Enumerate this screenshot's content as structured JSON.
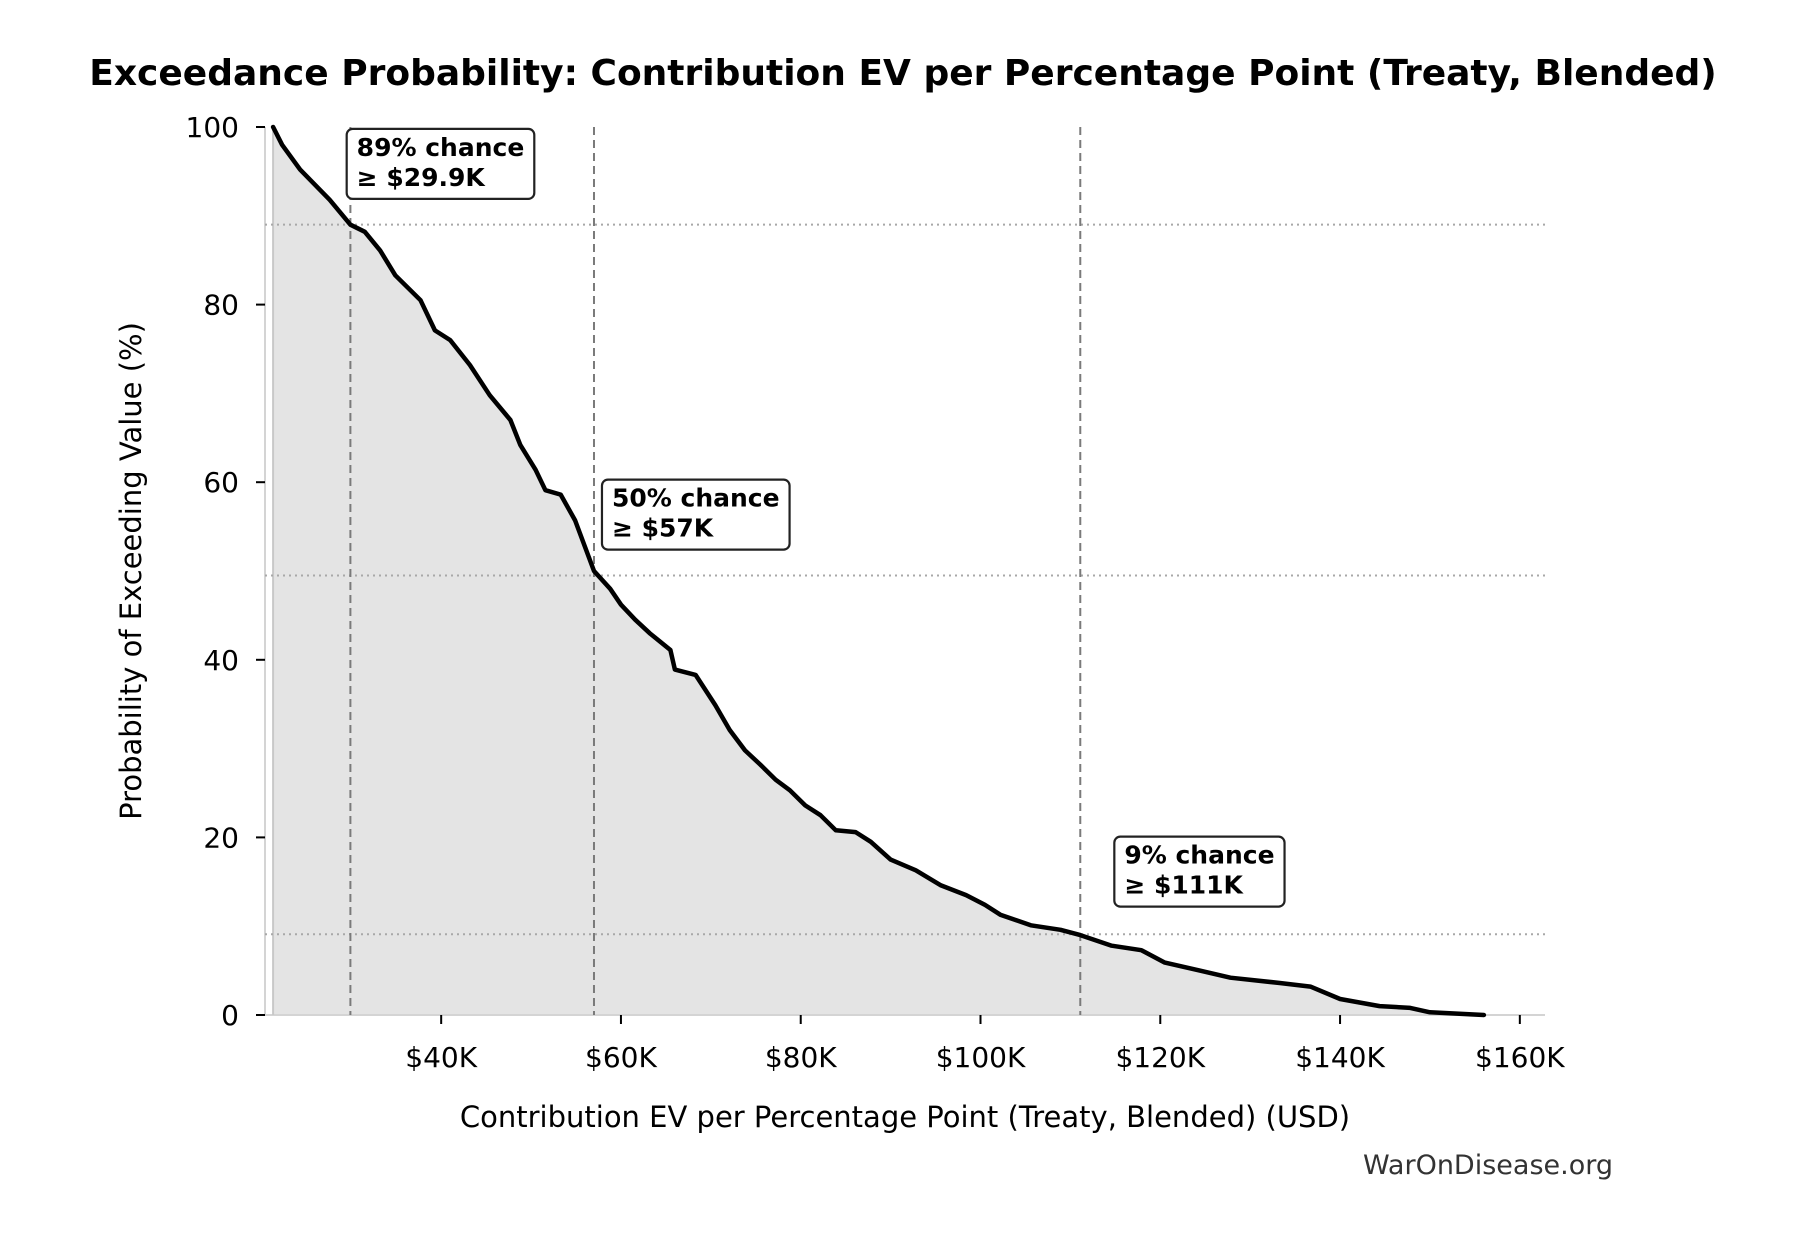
{
  "chart_data": {
    "type": "area",
    "title": "Exceedance Probability: Contribution EV per Percentage Point (Treaty, Blended)",
    "xlabel": "Contribution EV per Percentage Point (Treaty, Blended) (USD)",
    "ylabel": "Probability of Exceeding Value (%)",
    "xlim": [
      20.4,
      162.8
    ],
    "ylim": [
      0,
      100
    ],
    "x_unit": "thousand USD",
    "x_ticks": [
      {
        "value": 40,
        "label": "$40K"
      },
      {
        "value": 60,
        "label": "$60K"
      },
      {
        "value": 80,
        "label": "$80K"
      },
      {
        "value": 100,
        "label": "$100K"
      },
      {
        "value": 120,
        "label": "$120K"
      },
      {
        "value": 140,
        "label": "$140K"
      },
      {
        "value": 160,
        "label": "$160K"
      }
    ],
    "y_ticks": [
      {
        "value": 0,
        "label": "0"
      },
      {
        "value": 20,
        "label": "20"
      },
      {
        "value": 40,
        "label": "40"
      },
      {
        "value": 60,
        "label": "60"
      },
      {
        "value": 80,
        "label": "80"
      },
      {
        "value": 100,
        "label": "100"
      }
    ],
    "grid": false,
    "legend": "none",
    "series": [
      {
        "name": "Exceedance probability",
        "color": "#000000",
        "fill": "#e4e4e4",
        "x": [
          21.3,
          22.3,
          24.3,
          27.6,
          29.9,
          31.5,
          33.2,
          34.9,
          37.7,
          39.3,
          41.0,
          43.2,
          45.4,
          47.7,
          48.8,
          50.5,
          51.6,
          53.3,
          54.9,
          57.0,
          58.8,
          60.0,
          61.6,
          63.2,
          65.5,
          66.0,
          68.3,
          70.5,
          72.1,
          73.8,
          75.5,
          77.2,
          78.8,
          80.5,
          82.2,
          83.9,
          86.1,
          87.8,
          90.0,
          92.8,
          95.6,
          98.4,
          100.5,
          102.2,
          105.6,
          108.9,
          111.1,
          114.6,
          117.9,
          120.5,
          124.4,
          127.8,
          133.3,
          136.7,
          140.0,
          144.4,
          147.8,
          150.0,
          156.0
        ],
        "y": [
          100,
          98,
          95.2,
          91.8,
          89.0,
          88.2,
          86.1,
          83.3,
          80.5,
          77.1,
          76.0,
          73.2,
          69.8,
          67.0,
          64.2,
          61.4,
          59.1,
          58.6,
          55.7,
          50.0,
          48.0,
          46.2,
          44.5,
          43.0,
          41.1,
          38.9,
          38.3,
          34.9,
          32.1,
          29.8,
          28.2,
          26.5,
          25.3,
          23.6,
          22.5,
          20.8,
          20.6,
          19.5,
          17.5,
          16.3,
          14.6,
          13.5,
          12.4,
          11.3,
          10.1,
          9.6,
          9.0,
          7.8,
          7.3,
          5.9,
          5.0,
          4.2,
          3.6,
          3.2,
          1.8,
          1.0,
          0.8,
          0.3,
          0.0
        ]
      }
    ],
    "reference_lines": [
      {
        "x": 29.9,
        "y": 89
      },
      {
        "x": 57.0,
        "y": 49.5
      },
      {
        "x": 111.1,
        "y": 9.1
      }
    ],
    "annotations": [
      {
        "line1": "89% chance",
        "line2": "≥ $29.9K",
        "anchor_x": 30.6,
        "anchor_y": 99
      },
      {
        "line1": "50% chance",
        "line2": "≥ $57K",
        "anchor_x": 59.0,
        "anchor_y": 59.5
      },
      {
        "line1": "9% chance",
        "line2": "≥ $111K",
        "anchor_x": 116.0,
        "anchor_y": 19.3
      }
    ]
  },
  "watermark": "WarOnDisease.org"
}
